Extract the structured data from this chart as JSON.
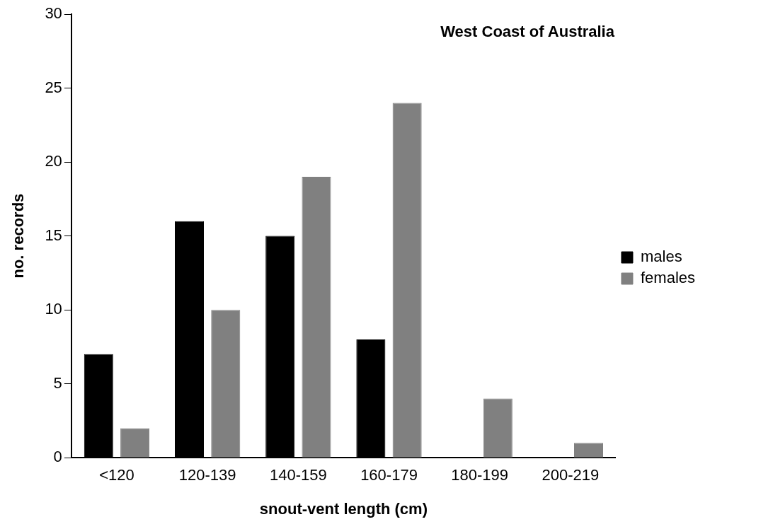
{
  "chart_data": {
    "type": "bar",
    "xlabel": "snout-vent length (cm)",
    "ylabel": "no. records",
    "annotations": [
      "West Coast of Australia"
    ],
    "categories": [
      "<120",
      "120-139",
      "140-159",
      "160-179",
      "180-199",
      "200-219"
    ],
    "series": [
      {
        "name": "males",
        "color": "#000000",
        "values": [
          7,
          16,
          15,
          8,
          0,
          0
        ]
      },
      {
        "name": "females",
        "color": "#808080",
        "values": [
          2,
          10,
          19,
          24,
          4,
          1
        ]
      }
    ],
    "ylim": [
      0,
      30
    ],
    "yticks": [
      0,
      5,
      10,
      15,
      20,
      25,
      30
    ],
    "grid": false,
    "legend": "right"
  }
}
